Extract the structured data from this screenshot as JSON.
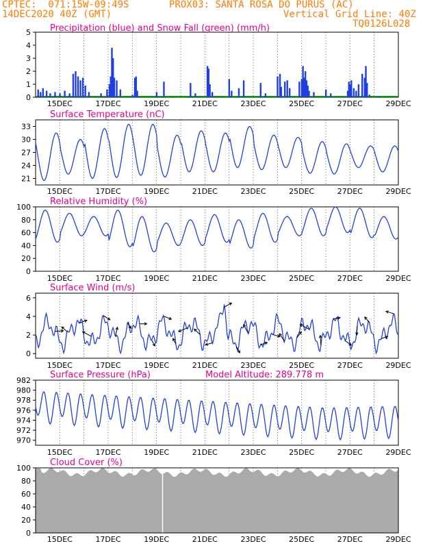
{
  "header": {
    "line1_left": "CPTEC:  071:15W-09:49S",
    "line1_right": "PROX03: SANTA ROSA DO PURUS (AC)",
    "line2_left": "14DEC2020 40Z (GMT)",
    "line2_right": "Vertical Grid Line: 40Z",
    "code": "TQ0126L028"
  },
  "colors": {
    "header": "#ff7a00",
    "title": "#e6008a",
    "line": "#1f3fe0",
    "snow": "#009900",
    "cloud": "#aaaaaa"
  },
  "x_labels": [
    "15DEC",
    "17DEC",
    "19DEC",
    "21DEC",
    "23DEC",
    "25DEC",
    "27DEC",
    "29DEC"
  ],
  "chart_data": [
    {
      "id": "precip",
      "type": "bar",
      "title": "Precipitation (blue) and Snow Fall (green) (mm/h)",
      "ylim": [
        0,
        5
      ],
      "yticks": [
        0,
        1,
        2,
        3,
        4,
        5
      ],
      "bars": [
        [
          14.1,
          0.6
        ],
        [
          14.2,
          0.4
        ],
        [
          14.3,
          0.7
        ],
        [
          14.45,
          0.5
        ],
        [
          14.6,
          0.3
        ],
        [
          14.8,
          0.4
        ],
        [
          15.0,
          0.3
        ],
        [
          15.2,
          0.5
        ],
        [
          15.4,
          0.3
        ],
        [
          15.55,
          1.8
        ],
        [
          15.65,
          2.0
        ],
        [
          15.75,
          1.6
        ],
        [
          15.85,
          1.3
        ],
        [
          15.95,
          1.5
        ],
        [
          16.05,
          0.9
        ],
        [
          16.2,
          0.4
        ],
        [
          16.7,
          0.3
        ],
        [
          16.95,
          0.6
        ],
        [
          17.05,
          1.0
        ],
        [
          17.1,
          1.6
        ],
        [
          17.15,
          3.8
        ],
        [
          17.2,
          3.0
        ],
        [
          17.25,
          1.5
        ],
        [
          17.35,
          1.3
        ],
        [
          17.5,
          0.6
        ],
        [
          18.0,
          0.2
        ],
        [
          18.1,
          1.5
        ],
        [
          18.15,
          1.6
        ],
        [
          18.2,
          0.5
        ],
        [
          19.0,
          0.4
        ],
        [
          19.3,
          1.2
        ],
        [
          20.4,
          1.1
        ],
        [
          20.6,
          0.3
        ],
        [
          21.1,
          2.4
        ],
        [
          21.15,
          2.2
        ],
        [
          21.2,
          1.0
        ],
        [
          21.3,
          0.4
        ],
        [
          22.0,
          1.4
        ],
        [
          22.1,
          0.5
        ],
        [
          22.4,
          0.7
        ],
        [
          22.6,
          1.3
        ],
        [
          23.3,
          1.1
        ],
        [
          23.5,
          0.3
        ],
        [
          24.0,
          1.6
        ],
        [
          24.1,
          1.8
        ],
        [
          24.15,
          0.8
        ],
        [
          24.3,
          1.2
        ],
        [
          24.4,
          1.3
        ],
        [
          24.5,
          0.7
        ],
        [
          24.9,
          1.2
        ],
        [
          25.0,
          1.4
        ],
        [
          25.05,
          2.4
        ],
        [
          25.1,
          1.5
        ],
        [
          25.15,
          2.0
        ],
        [
          25.2,
          1.3
        ],
        [
          25.25,
          0.9
        ],
        [
          25.3,
          0.5
        ],
        [
          25.5,
          0.4
        ],
        [
          26.0,
          0.6
        ],
        [
          26.2,
          0.3
        ],
        [
          26.9,
          0.5
        ],
        [
          26.95,
          1.2
        ],
        [
          27.0,
          1.0
        ],
        [
          27.05,
          1.3
        ],
        [
          27.15,
          0.7
        ],
        [
          27.25,
          0.5
        ],
        [
          27.35,
          1.0
        ],
        [
          27.5,
          1.8
        ],
        [
          27.6,
          1.5
        ],
        [
          27.65,
          2.4
        ],
        [
          27.7,
          1.1
        ],
        [
          27.8,
          0.2
        ],
        [
          28.2,
          0.1
        ]
      ]
    },
    {
      "id": "temp",
      "type": "line",
      "title": "Surface Temperature (nC)",
      "ylim": [
        19.5,
        34.5
      ],
      "yticks": [
        21,
        24,
        27,
        30,
        33
      ],
      "amplitude_model": {
        "min": [
          20.5,
          22,
          21,
          21.2,
          21.7,
          21.3,
          22.5,
          22.5,
          23.5,
          23,
          23.5,
          22.2,
          22,
          23.5,
          22.5,
          21.5
        ],
        "max": [
          31.5,
          30,
          32.5,
          33.5,
          33.5,
          31,
          32,
          31.5,
          33,
          31,
          30.5,
          29.5,
          29,
          28.5,
          28.5,
          32
        ]
      }
    },
    {
      "id": "rh",
      "type": "line",
      "title": "Relative Humidity (%)",
      "ylim": [
        0,
        100
      ],
      "yticks": [
        0,
        20,
        40,
        60,
        80,
        100
      ]
    },
    {
      "id": "wind",
      "type": "line",
      "title": "Surface Wind (m/s)",
      "ylim": [
        -0.5,
        6.5
      ],
      "yticks": [
        0,
        2,
        4,
        6
      ]
    },
    {
      "id": "pressure",
      "type": "line",
      "title": "Surface Pressure (hPa)",
      "annotation": "Model Altitude: 289.778 m",
      "ylim": [
        969,
        982
      ],
      "yticks": [
        970,
        972,
        974,
        976,
        978,
        980,
        982
      ]
    },
    {
      "id": "cloud",
      "type": "area",
      "title": "Cloud Cover (%)",
      "ylim": [
        0,
        100
      ],
      "yticks": [
        0,
        20,
        40,
        60,
        80,
        100
      ]
    }
  ]
}
